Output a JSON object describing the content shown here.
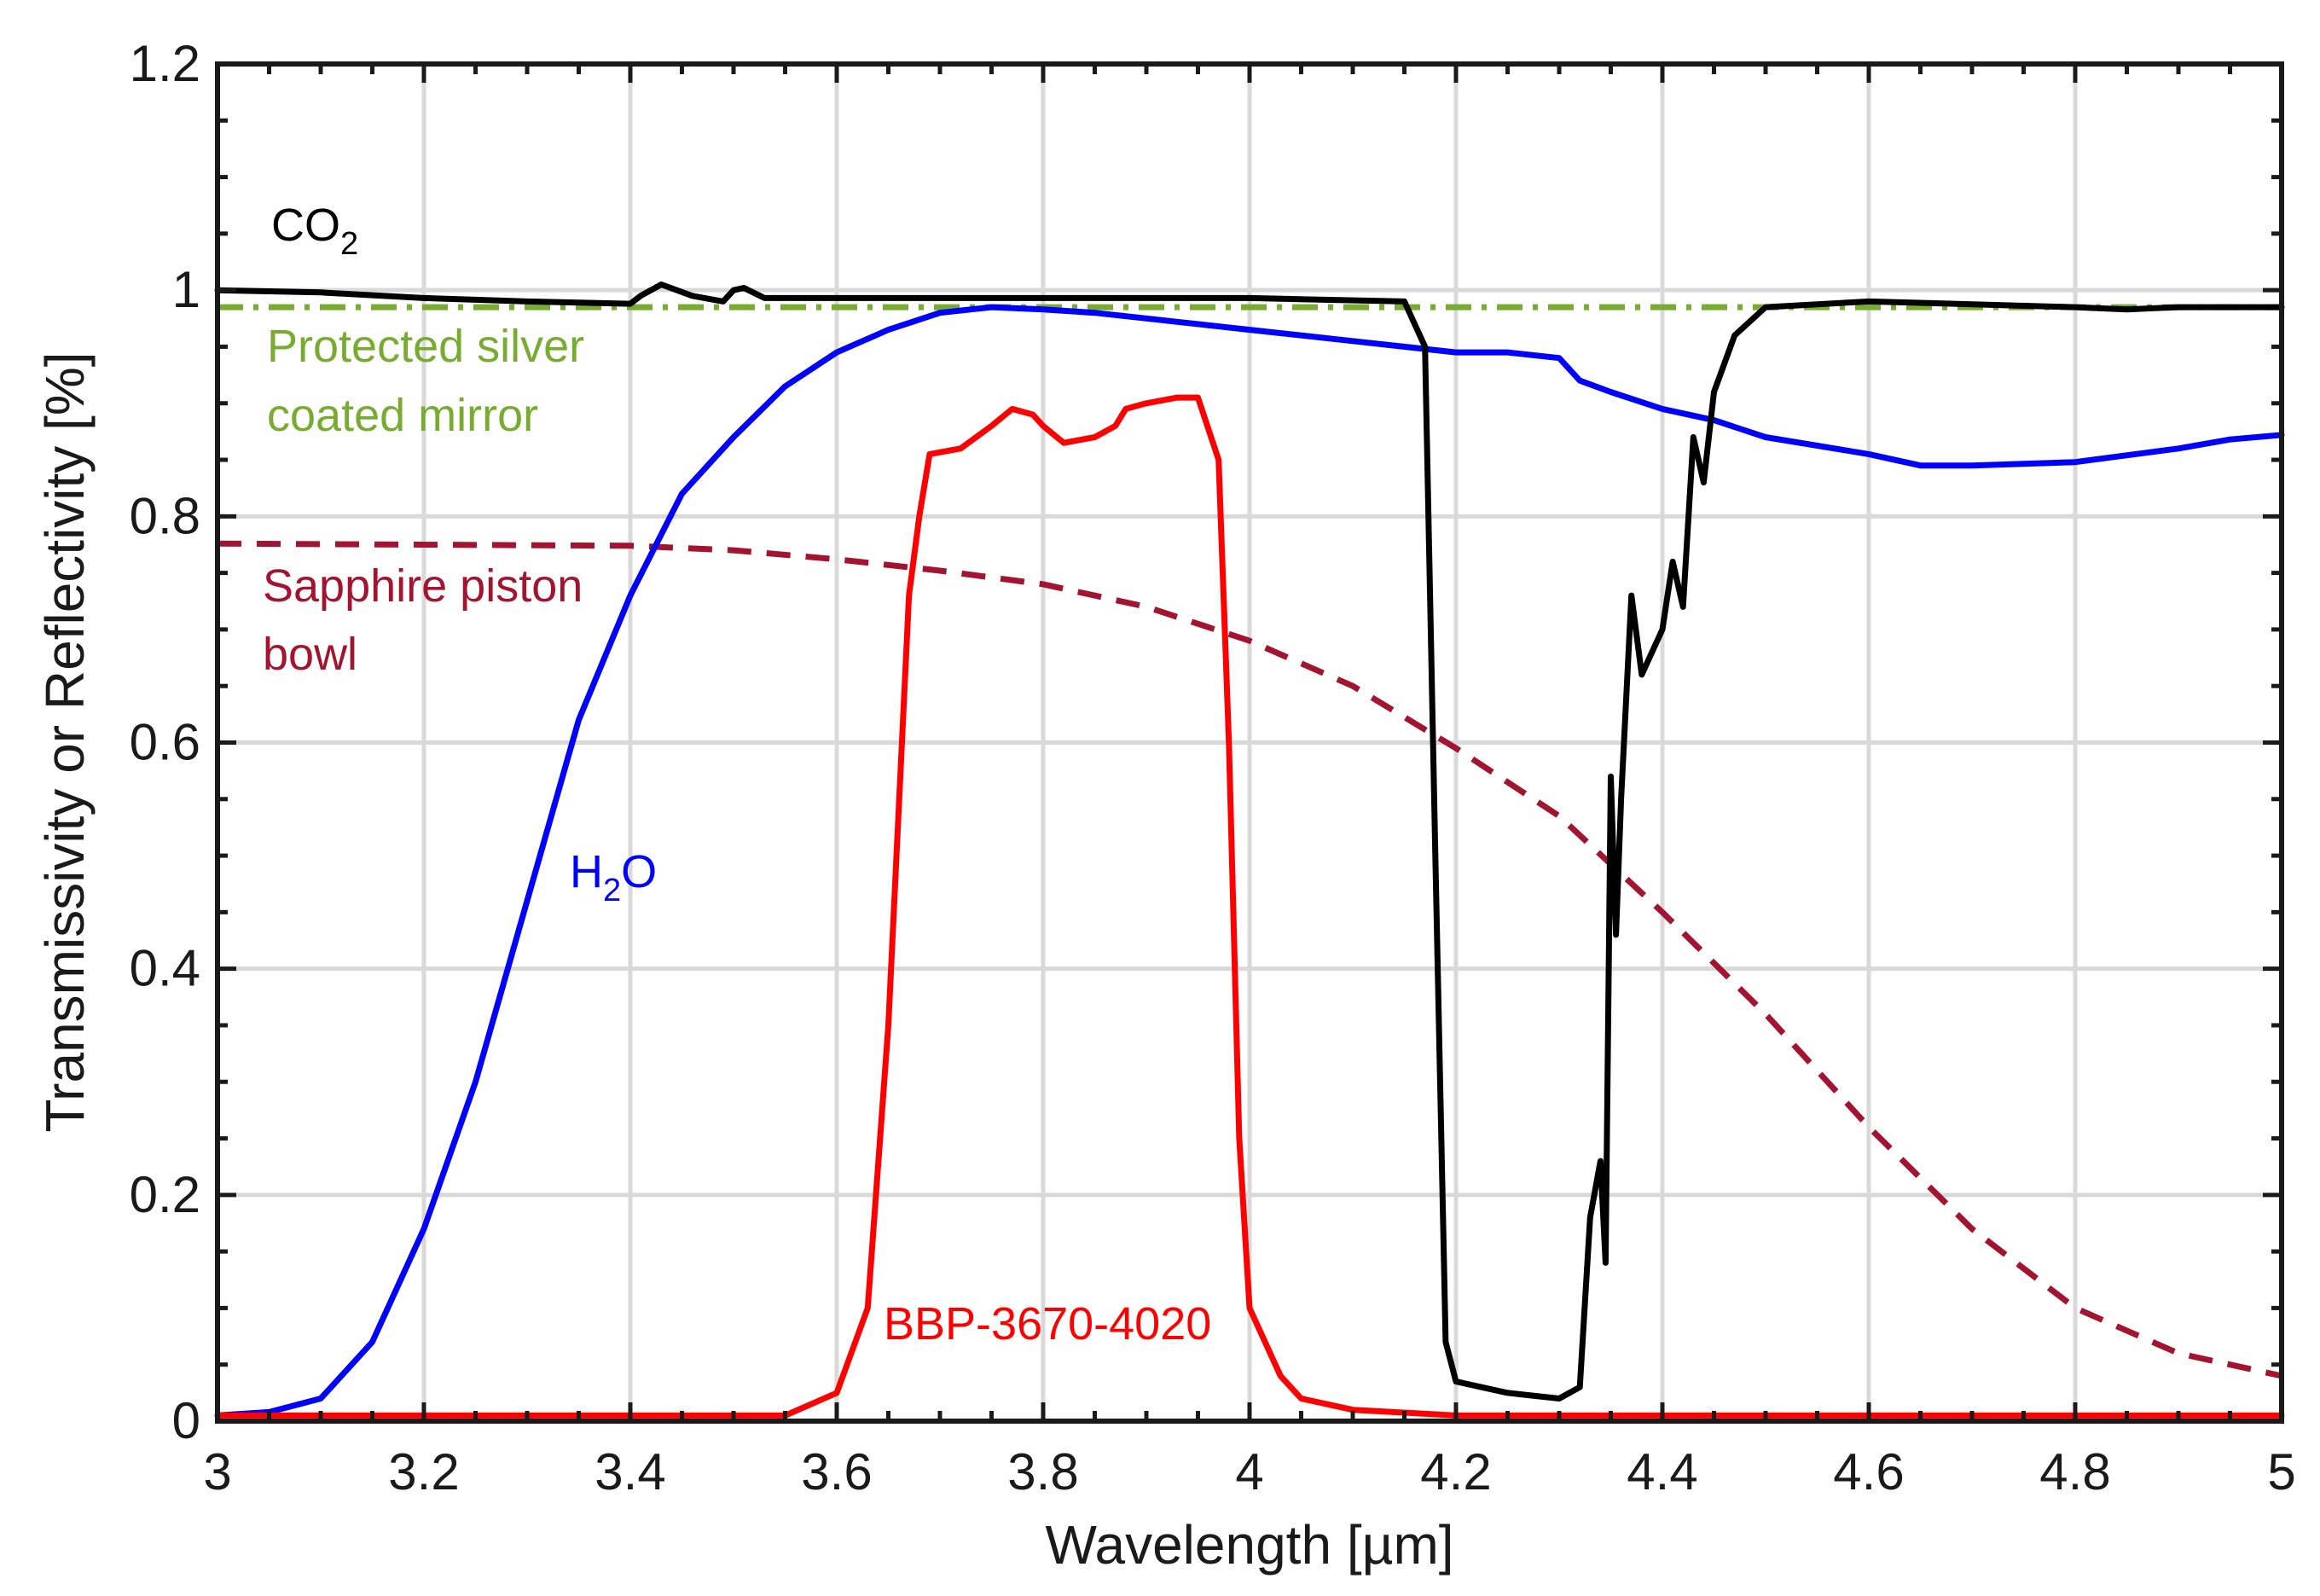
{
  "chart_data": {
    "type": "line",
    "title": "",
    "xlabel": "Wavelength [µm]",
    "ylabel": "Transmissivity or Reflectivity [%]",
    "xlim": [
      3,
      5
    ],
    "ylim": [
      0,
      1.2
    ],
    "grid": true,
    "x_ticks": [
      3,
      3.2,
      3.4,
      3.6,
      3.8,
      4,
      4.2,
      4.4,
      4.6,
      4.8,
      5
    ],
    "x_tick_labels": [
      "3",
      "3.2",
      "3.4",
      "3.6",
      "3.8",
      "4",
      "4.2",
      "4.4",
      "4.6",
      "4.8",
      "5"
    ],
    "y_ticks": [
      0,
      0.2,
      0.4,
      0.6,
      0.8,
      1,
      1.2
    ],
    "y_tick_labels": [
      "0",
      "0.2",
      "0.4",
      "0.6",
      "0.8",
      "1",
      "1.2"
    ],
    "series": [
      {
        "name": "Protected silver coated mirror",
        "color": "#77ac30",
        "style": "dashdot",
        "x": [
          3.0,
          5.0
        ],
        "y": [
          0.985,
          0.985
        ]
      },
      {
        "name": "Sapphire piston bowl",
        "color": "#a2142f",
        "style": "dashed",
        "x": [
          3.0,
          3.2,
          3.4,
          3.5,
          3.6,
          3.7,
          3.8,
          3.9,
          4.0,
          4.1,
          4.2,
          4.3,
          4.4,
          4.5,
          4.6,
          4.7,
          4.8,
          4.9,
          5.0
        ],
        "y": [
          0.776,
          0.775,
          0.774,
          0.77,
          0.762,
          0.752,
          0.74,
          0.72,
          0.69,
          0.65,
          0.595,
          0.535,
          0.45,
          0.36,
          0.26,
          0.17,
          0.1,
          0.06,
          0.04
        ]
      },
      {
        "name": "H2O",
        "color": "#0000ff",
        "style": "solid",
        "x": [
          3.0,
          3.05,
          3.1,
          3.15,
          3.2,
          3.25,
          3.3,
          3.35,
          3.4,
          3.45,
          3.5,
          3.55,
          3.6,
          3.65,
          3.7,
          3.75,
          3.8,
          3.85,
          3.9,
          4.0,
          4.1,
          4.2,
          4.25,
          4.3,
          4.32,
          4.35,
          4.4,
          4.45,
          4.5,
          4.6,
          4.65,
          4.7,
          4.8,
          4.9,
          4.95,
          5.0
        ],
        "y": [
          0.005,
          0.008,
          0.02,
          0.07,
          0.17,
          0.3,
          0.46,
          0.62,
          0.73,
          0.82,
          0.87,
          0.915,
          0.945,
          0.965,
          0.98,
          0.985,
          0.983,
          0.98,
          0.975,
          0.965,
          0.955,
          0.945,
          0.945,
          0.94,
          0.92,
          0.91,
          0.895,
          0.885,
          0.87,
          0.855,
          0.845,
          0.845,
          0.848,
          0.86,
          0.868,
          0.872
        ]
      },
      {
        "name": "BBP-3670-4020",
        "color": "#ff0000",
        "style": "solid",
        "x": [
          3.0,
          3.55,
          3.6,
          3.63,
          3.65,
          3.67,
          3.68,
          3.69,
          3.72,
          3.75,
          3.77,
          3.79,
          3.8,
          3.82,
          3.85,
          3.87,
          3.88,
          3.9,
          3.93,
          3.95,
          3.97,
          3.98,
          3.99,
          4.0,
          4.03,
          4.05,
          4.1,
          4.2,
          5.0
        ],
        "y": [
          0.005,
          0.005,
          0.025,
          0.1,
          0.35,
          0.73,
          0.8,
          0.855,
          0.86,
          0.88,
          0.895,
          0.89,
          0.88,
          0.865,
          0.87,
          0.88,
          0.895,
          0.9,
          0.905,
          0.905,
          0.85,
          0.6,
          0.25,
          0.1,
          0.04,
          0.02,
          0.01,
          0.005,
          0.005
        ]
      },
      {
        "name": "CO2",
        "color": "#000000",
        "style": "solid",
        "x": [
          3.0,
          3.1,
          3.2,
          3.3,
          3.4,
          3.41,
          3.43,
          3.46,
          3.49,
          3.5,
          3.51,
          3.53,
          3.6,
          3.8,
          4.0,
          4.15,
          4.17,
          4.18,
          4.19,
          4.2,
          4.25,
          4.3,
          4.32,
          4.33,
          4.34,
          4.345,
          4.35,
          4.355,
          4.36,
          4.37,
          4.38,
          4.4,
          4.41,
          4.42,
          4.43,
          4.44,
          4.45,
          4.47,
          4.5,
          4.6,
          4.8,
          4.85,
          4.9,
          5.0
        ],
        "y": [
          1.0,
          0.998,
          0.993,
          0.99,
          0.988,
          0.995,
          1.005,
          0.995,
          0.99,
          1.0,
          1.002,
          0.993,
          0.993,
          0.993,
          0.993,
          0.99,
          0.95,
          0.5,
          0.07,
          0.035,
          0.025,
          0.02,
          0.03,
          0.18,
          0.23,
          0.14,
          0.57,
          0.43,
          0.55,
          0.73,
          0.66,
          0.7,
          0.76,
          0.72,
          0.87,
          0.83,
          0.91,
          0.96,
          0.985,
          0.99,
          0.985,
          0.983,
          0.985,
          0.985
        ]
      }
    ],
    "annotations": {
      "co2": "CO",
      "co2_sub": "2",
      "mirror_line1": "Protected silver",
      "mirror_line2": "coated mirror",
      "sapphire_line1": "Sapphire piston",
      "sapphire_line2": "bowl",
      "h2o_main": "H",
      "h2o_sub": "2",
      "h2o_end": "O",
      "bbp": "BBP-3670-4020"
    }
  }
}
